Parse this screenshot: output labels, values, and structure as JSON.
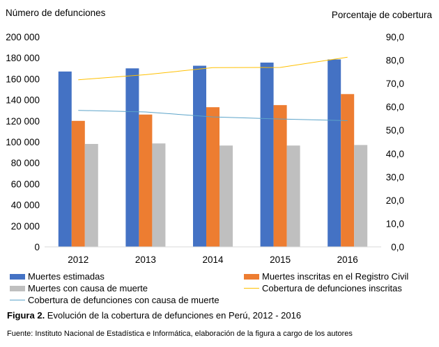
{
  "chart_data": {
    "type": "bar",
    "categories": [
      "2012",
      "2013",
      "2014",
      "2015",
      "2016"
    ],
    "y_left": {
      "label": "Número de defunciones",
      "ylim": [
        0,
        200000
      ],
      "ticks": [
        "0",
        "20 000",
        "40 000",
        "60 000",
        "80 000",
        "100 000",
        "120 000",
        "140 000",
        "160 000",
        "180 000",
        "200 000"
      ]
    },
    "y_right": {
      "label": "Porcentaje de cobertura",
      "ylim": [
        0,
        90
      ],
      "ticks": [
        "0,0",
        "10,0",
        "20,0",
        "30,0",
        "40,0",
        "50,0",
        "60,0",
        "70,0",
        "80,0",
        "90,0"
      ]
    },
    "series": [
      {
        "name": "Muertes estimadas",
        "kind": "bar",
        "axis": "left",
        "color": "#4472C4",
        "values": [
          167000,
          170000,
          172500,
          175500,
          178500
        ]
      },
      {
        "name": "Muertes inscritas en el Registro Civil",
        "kind": "bar",
        "axis": "left",
        "color": "#ED7D31",
        "values": [
          120000,
          126000,
          133000,
          135000,
          145500
        ]
      },
      {
        "name": "Muertes con causa de muerte",
        "kind": "bar",
        "axis": "left",
        "color": "#BFBFBF",
        "values": [
          98000,
          98500,
          96500,
          96500,
          97000
        ]
      },
      {
        "name": "Cobertura de defunciones inscritas",
        "kind": "line",
        "axis": "right",
        "color": "#FFC000",
        "values": [
          71.6,
          73.8,
          76.8,
          76.9,
          81.3
        ]
      },
      {
        "name": "Cobertura de defunciones con causa de muerte",
        "kind": "line",
        "axis": "right",
        "color": "#5BA3C9",
        "values": [
          58.5,
          57.8,
          55.7,
          54.8,
          54.1
        ]
      }
    ],
    "grid": false,
    "legend_position": "bottom"
  },
  "caption": {
    "label": "Figura 2.",
    "text": " Evolución de la cobertura de defunciones en Perú, 2012 - 2016"
  },
  "source": "Fuente: Instituto Nacional de Estadística e Informática, elaboración de la figura a cargo de los autores"
}
